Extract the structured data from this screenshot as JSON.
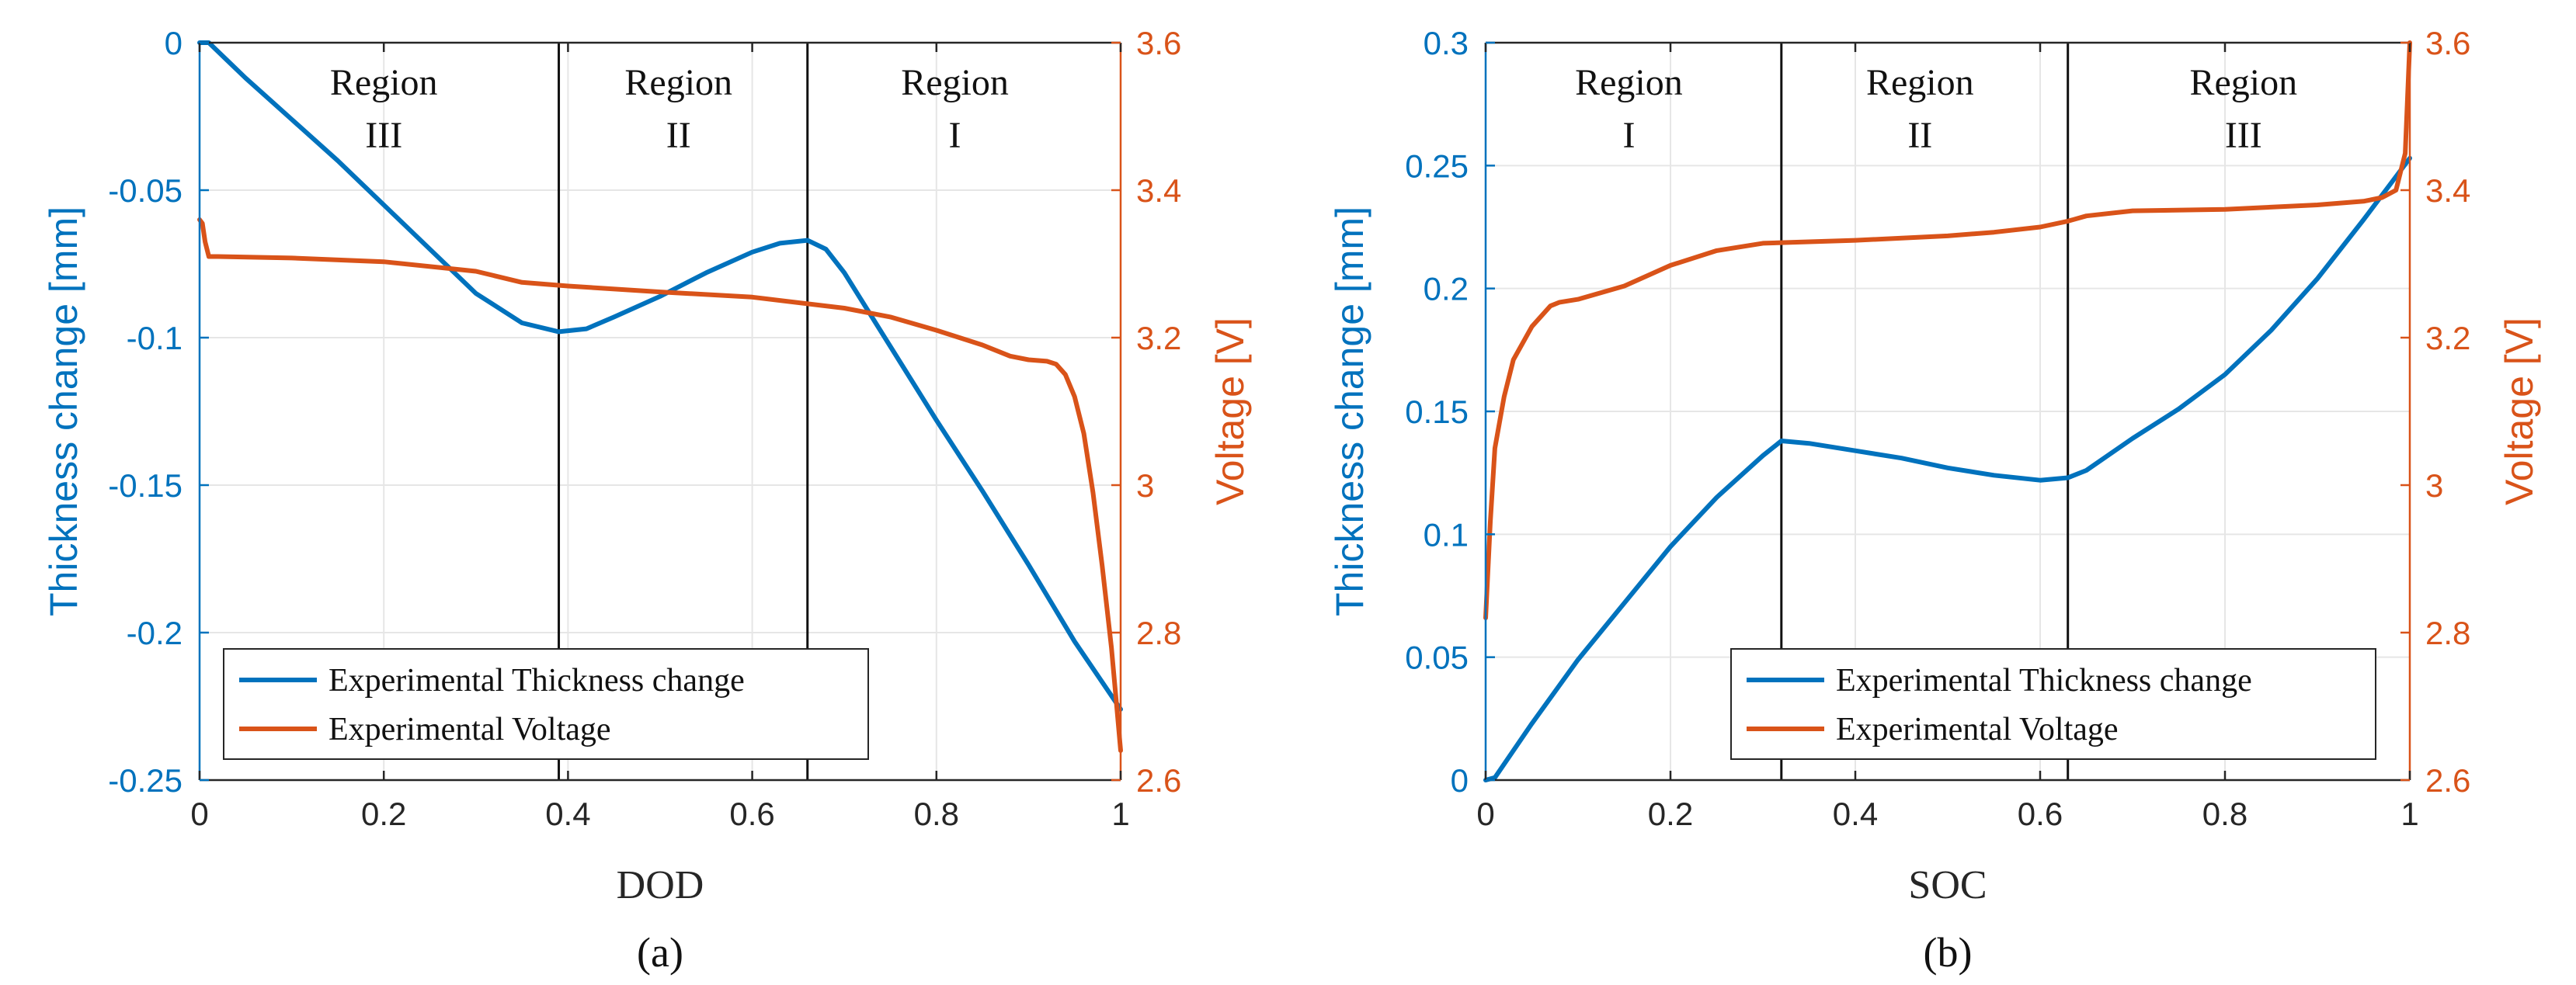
{
  "colors": {
    "thickness": "#0072BD",
    "voltage": "#D95319",
    "axis": "#262626",
    "grid": "#E6E6E6",
    "divider": "#111111"
  },
  "chart_data": [
    {
      "type": "line",
      "caption": "(a)",
      "xlabel": "DOD",
      "ylabel_left": "Thickness change [mm]",
      "ylabel_right": "Voltage [V]",
      "xlim": [
        0,
        1
      ],
      "ylim_left": [
        -0.25,
        0
      ],
      "ylim_right": [
        2.6,
        3.6
      ],
      "x_ticks": [
        "0",
        "0.2",
        "0.4",
        "0.6",
        "0.8",
        "1"
      ],
      "x_tick_values": [
        0,
        0.2,
        0.4,
        0.6,
        0.8,
        1
      ],
      "y_left_ticks": [
        "0",
        "-0.05",
        "-0.1",
        "-0.15",
        "-0.2",
        "-0.25"
      ],
      "y_left_tick_values": [
        0,
        -0.05,
        -0.1,
        -0.15,
        -0.2,
        -0.25
      ],
      "y_right_ticks": [
        "3.6",
        "3.4",
        "3.2",
        "3",
        "2.8",
        "2.6"
      ],
      "y_right_tick_values": [
        3.6,
        3.4,
        3.2,
        3.0,
        2.8,
        2.6
      ],
      "grid": true,
      "region_dividers": [
        0.39,
        0.66
      ],
      "regions": [
        {
          "word": "Region",
          "numeral": "III",
          "x": 0.2
        },
        {
          "word": "Region",
          "numeral": "II",
          "x": 0.52
        },
        {
          "word": "Region",
          "numeral": "I",
          "x": 0.82
        }
      ],
      "legend": {
        "position": "bottom-left",
        "entries": [
          "Experimental Thickness change",
          "Experimental Voltage"
        ]
      },
      "series": [
        {
          "name": "Experimental Thickness change",
          "axis": "left",
          "x": [
            0.0,
            0.01,
            0.03,
            0.05,
            0.1,
            0.15,
            0.2,
            0.25,
            0.3,
            0.35,
            0.39,
            0.42,
            0.45,
            0.5,
            0.55,
            0.6,
            0.63,
            0.66,
            0.68,
            0.7,
            0.72,
            0.75,
            0.78,
            0.8,
            0.85,
            0.9,
            0.95,
            1.0
          ],
          "y": [
            0.0,
            0.0,
            -0.006,
            -0.012,
            -0.026,
            -0.04,
            -0.055,
            -0.07,
            -0.085,
            -0.095,
            -0.098,
            -0.097,
            -0.093,
            -0.086,
            -0.078,
            -0.071,
            -0.068,
            -0.067,
            -0.07,
            -0.078,
            -0.088,
            -0.103,
            -0.118,
            -0.128,
            -0.152,
            -0.177,
            -0.203,
            -0.226
          ]
        },
        {
          "name": "Experimental Voltage",
          "axis": "right",
          "x": [
            0.0,
            0.003,
            0.006,
            0.01,
            0.02,
            0.1,
            0.2,
            0.3,
            0.35,
            0.4,
            0.5,
            0.6,
            0.7,
            0.75,
            0.8,
            0.85,
            0.88,
            0.9,
            0.92,
            0.93,
            0.94,
            0.95,
            0.96,
            0.97,
            0.98,
            0.99,
            0.995,
            1.0
          ],
          "y": [
            3.36,
            3.355,
            3.33,
            3.31,
            3.31,
            3.308,
            3.303,
            3.29,
            3.275,
            3.27,
            3.262,
            3.255,
            3.24,
            3.228,
            3.21,
            3.19,
            3.175,
            3.17,
            3.168,
            3.164,
            3.15,
            3.12,
            3.07,
            2.99,
            2.89,
            2.78,
            2.71,
            2.64
          ]
        }
      ]
    },
    {
      "type": "line",
      "caption": "(b)",
      "xlabel": "SOC",
      "ylabel_left": "Thickness change [mm]",
      "ylabel_right": "Voltage [V]",
      "xlim": [
        0,
        1
      ],
      "ylim_left": [
        0,
        0.3
      ],
      "ylim_right": [
        2.6,
        3.6
      ],
      "x_ticks": [
        "0",
        "0.2",
        "0.4",
        "0.6",
        "0.8",
        "1"
      ],
      "x_tick_values": [
        0,
        0.2,
        0.4,
        0.6,
        0.8,
        1
      ],
      "y_left_ticks": [
        "0.3",
        "0.25",
        "0.2",
        "0.15",
        "0.1",
        "0.05",
        "0"
      ],
      "y_left_tick_values": [
        0.3,
        0.25,
        0.2,
        0.15,
        0.1,
        0.05,
        0
      ],
      "y_right_ticks": [
        "3.6",
        "3.4",
        "3.2",
        "3",
        "2.8",
        "2.6"
      ],
      "y_right_tick_values": [
        3.6,
        3.4,
        3.2,
        3.0,
        2.8,
        2.6
      ],
      "grid": true,
      "region_dividers": [
        0.32,
        0.63
      ],
      "regions": [
        {
          "word": "Region",
          "numeral": "I",
          "x": 0.155
        },
        {
          "word": "Region",
          "numeral": "II",
          "x": 0.47
        },
        {
          "word": "Region",
          "numeral": "III",
          "x": 0.82
        }
      ],
      "legend": {
        "position": "bottom-right",
        "entries": [
          "Experimental Thickness change",
          "Experimental Voltage"
        ]
      },
      "series": [
        {
          "name": "Experimental Thickness change",
          "axis": "left",
          "x": [
            0.0,
            0.01,
            0.05,
            0.1,
            0.15,
            0.2,
            0.25,
            0.3,
            0.32,
            0.35,
            0.4,
            0.45,
            0.5,
            0.55,
            0.6,
            0.63,
            0.65,
            0.7,
            0.75,
            0.8,
            0.85,
            0.9,
            0.95,
            0.98,
            1.0
          ],
          "y": [
            0.0,
            0.001,
            0.023,
            0.049,
            0.072,
            0.095,
            0.115,
            0.132,
            0.138,
            0.137,
            0.134,
            0.131,
            0.127,
            0.124,
            0.122,
            0.123,
            0.126,
            0.139,
            0.151,
            0.165,
            0.183,
            0.204,
            0.228,
            0.243,
            0.253
          ]
        },
        {
          "name": "Experimental Voltage",
          "axis": "right",
          "x": [
            0.0,
            0.005,
            0.01,
            0.02,
            0.03,
            0.05,
            0.07,
            0.08,
            0.1,
            0.15,
            0.2,
            0.25,
            0.3,
            0.35,
            0.4,
            0.5,
            0.55,
            0.6,
            0.63,
            0.65,
            0.7,
            0.8,
            0.9,
            0.95,
            0.97,
            0.985,
            0.995,
            1.0
          ],
          "y": [
            2.82,
            2.95,
            3.05,
            3.12,
            3.17,
            3.215,
            3.243,
            3.248,
            3.252,
            3.27,
            3.298,
            3.318,
            3.328,
            3.33,
            3.332,
            3.338,
            3.343,
            3.35,
            3.358,
            3.365,
            3.372,
            3.374,
            3.38,
            3.385,
            3.39,
            3.4,
            3.45,
            3.6
          ]
        }
      ]
    }
  ]
}
